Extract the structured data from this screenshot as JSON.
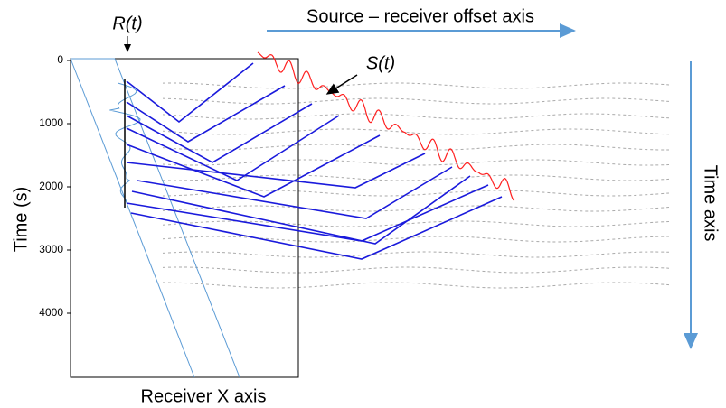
{
  "labels": {
    "receiver_signal": "R(t)",
    "source_signal": "S(t)",
    "offset_axis": "Source – receiver offset axis",
    "time_axis": "Time axis",
    "receiver_axis": "Receiver X axis"
  },
  "axis": {
    "label": "Time (s)",
    "ylim": [
      0,
      5000
    ],
    "yticks": [
      0,
      1000,
      2000,
      3000,
      4000
    ]
  }
}
